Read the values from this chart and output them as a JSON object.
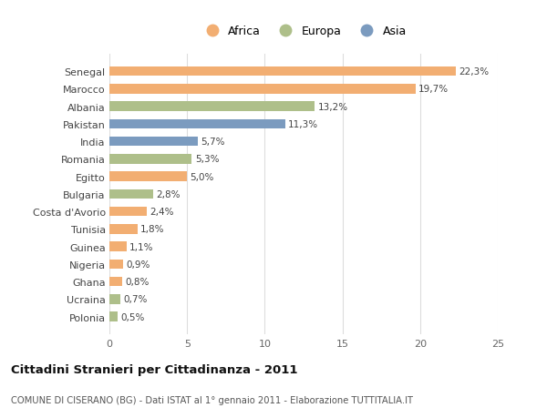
{
  "countries": [
    "Senegal",
    "Marocco",
    "Albania",
    "Pakistan",
    "India",
    "Romania",
    "Egitto",
    "Bulgaria",
    "Costa d'Avorio",
    "Tunisia",
    "Guinea",
    "Nigeria",
    "Ghana",
    "Ucraina",
    "Polonia"
  ],
  "values": [
    22.3,
    19.7,
    13.2,
    11.3,
    5.7,
    5.3,
    5.0,
    2.8,
    2.4,
    1.8,
    1.1,
    0.9,
    0.8,
    0.7,
    0.5
  ],
  "labels": [
    "22,3%",
    "19,7%",
    "13,2%",
    "11,3%",
    "5,7%",
    "5,3%",
    "5,0%",
    "2,8%",
    "2,4%",
    "1,8%",
    "1,1%",
    "0,9%",
    "0,8%",
    "0,7%",
    "0,5%"
  ],
  "continents": [
    "Africa",
    "Africa",
    "Europa",
    "Asia",
    "Asia",
    "Europa",
    "Africa",
    "Europa",
    "Africa",
    "Africa",
    "Africa",
    "Africa",
    "Africa",
    "Europa",
    "Europa"
  ],
  "colors": {
    "Africa": "#F2AE72",
    "Europa": "#AEBF8A",
    "Asia": "#7B9BBF"
  },
  "xlim": [
    0,
    25
  ],
  "xticks": [
    0,
    5,
    10,
    15,
    20,
    25
  ],
  "title": "Cittadini Stranieri per Cittadinanza - 2011",
  "subtitle": "COMUNE DI CISERANO (BG) - Dati ISTAT al 1° gennaio 2011 - Elaborazione TUTTITALIA.IT",
  "bg_color": "#FFFFFF",
  "grid_color": "#DDDDDD",
  "bar_height": 0.55,
  "legend_order": [
    "Africa",
    "Europa",
    "Asia"
  ]
}
